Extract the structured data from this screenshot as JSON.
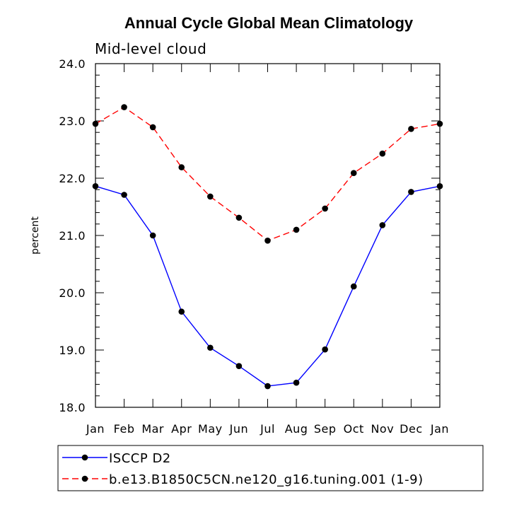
{
  "chart_data": {
    "type": "line",
    "title": "Annual Cycle Global Mean Climatology",
    "subtitle": "Mid-level cloud",
    "xlabel": "",
    "ylabel": "percent",
    "categories": [
      "Jan",
      "Feb",
      "Mar",
      "Apr",
      "May",
      "Jun",
      "Jul",
      "Aug",
      "Sep",
      "Oct",
      "Nov",
      "Dec",
      "Jan"
    ],
    "ylim": [
      18.0,
      24.0
    ],
    "yticks": [
      18.0,
      19.0,
      20.0,
      21.0,
      22.0,
      23.0,
      24.0
    ],
    "ytick_labels": [
      "18.0",
      "19.0",
      "20.0",
      "21.0",
      "22.0",
      "23.0",
      "24.0"
    ],
    "series": [
      {
        "name": "ISCCP D2",
        "color": "#0000ff",
        "dash": "solid",
        "values": [
          21.86,
          21.71,
          21.0,
          19.67,
          19.04,
          18.72,
          18.37,
          18.43,
          19.01,
          20.11,
          21.18,
          21.76,
          21.86
        ]
      },
      {
        "name": "b.e13.B1850C5CN.ne120_g16.tuning.001 (1-9)",
        "color": "#ff0000",
        "dash": "dashed",
        "values": [
          22.95,
          23.24,
          22.89,
          22.19,
          21.68,
          21.31,
          20.91,
          21.1,
          21.47,
          22.09,
          22.43,
          22.86,
          22.95
        ]
      }
    ],
    "legend": "bottom-left"
  }
}
